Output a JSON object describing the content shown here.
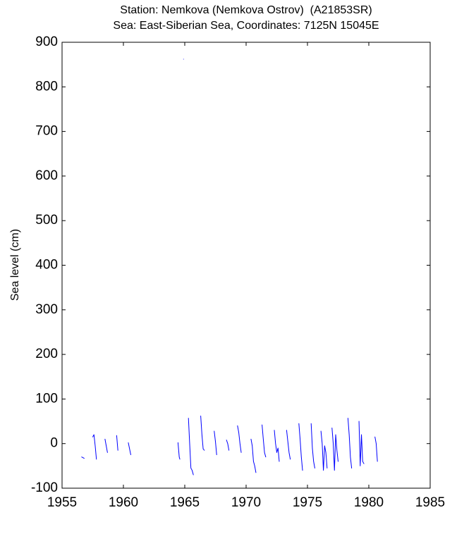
{
  "chart_data": {
    "type": "line",
    "title": "Station: Nemkova (Nemkova Ostrov)  (A21853SR)",
    "subtitle": "Sea: East-Siberian Sea, Coordinates: 7125N 15045E",
    "y_label": "Sea level (cm)",
    "x": [
      1956.6,
      1956.8,
      1957.1,
      1957.5,
      1957.6,
      1957.7,
      1957.8,
      1958.2,
      1958.5,
      1958.6,
      1958.7,
      1959.0,
      1959.45,
      1959.55,
      1960.0,
      1960.4,
      1960.6,
      1962.5,
      1964.45,
      1964.55,
      1964.6,
      1964.8,
      1964.9,
      1965.1,
      1965.3,
      1965.4,
      1965.5,
      1965.6,
      1965.7,
      1966.0,
      1966.3,
      1966.4,
      1966.5,
      1966.6,
      1967.0,
      1967.4,
      1967.5,
      1967.6,
      1968.0,
      1968.4,
      1968.5,
      1968.6,
      1969.0,
      1969.3,
      1969.4,
      1969.5,
      1969.6,
      1970.0,
      1970.4,
      1970.5,
      1970.6,
      1970.7,
      1970.8,
      1971.1,
      1971.3,
      1971.4,
      1971.5,
      1971.6,
      1972.0,
      1972.3,
      1972.4,
      1972.5,
      1972.6,
      1972.7,
      1973.0,
      1973.3,
      1973.4,
      1973.5,
      1973.6,
      1974.0,
      1974.3,
      1974.4,
      1974.5,
      1974.6,
      1975.0,
      1975.3,
      1975.4,
      1975.5,
      1975.6,
      1975.9,
      1976.1,
      1976.2,
      1976.3,
      1976.4,
      1976.5,
      1976.6,
      1976.9,
      1977.0,
      1977.1,
      1977.2,
      1977.3,
      1977.4,
      1977.5,
      1977.9,
      1978.3,
      1978.4,
      1978.5,
      1978.6,
      1979.0,
      1979.2,
      1979.3,
      1979.4,
      1979.5,
      1979.6,
      1980.0,
      1980.5,
      1980.6,
      1980.7
    ],
    "series": [
      {
        "name": "Sea level",
        "color": "#0000ff",
        "values": [
          -30,
          -33,
          null,
          15,
          20,
          -5,
          -35,
          null,
          10,
          -5,
          -20,
          null,
          18,
          -15,
          null,
          2,
          -25,
          null,
          2,
          -30,
          -35,
          null,
          862,
          null,
          57,
          0,
          -55,
          -60,
          -70,
          null,
          62,
          20,
          -12,
          -15,
          null,
          28,
          5,
          -25,
          null,
          8,
          0,
          -15,
          null,
          40,
          25,
          0,
          -20,
          null,
          10,
          -5,
          -40,
          -50,
          -65,
          null,
          42,
          10,
          -20,
          -30,
          null,
          30,
          0,
          -20,
          -10,
          -40,
          null,
          30,
          5,
          -20,
          -35,
          null,
          45,
          10,
          -30,
          -60,
          null,
          45,
          -10,
          -40,
          -55,
          null,
          28,
          0,
          -60,
          -5,
          -20,
          -55,
          null,
          35,
          0,
          -60,
          20,
          -15,
          -40,
          null,
          57,
          20,
          -30,
          -55,
          null,
          50,
          -50,
          20,
          -40,
          -45,
          null,
          15,
          0,
          -40
        ]
      }
    ],
    "xlim": [
      1955,
      1985
    ],
    "xticks": [
      1955,
      1960,
      1965,
      1970,
      1975,
      1980,
      1985
    ],
    "ylim": [
      -100,
      900
    ],
    "yticks": [
      -100,
      0,
      100,
      200,
      300,
      400,
      500,
      600,
      700,
      800,
      900
    ],
    "grid": false
  }
}
